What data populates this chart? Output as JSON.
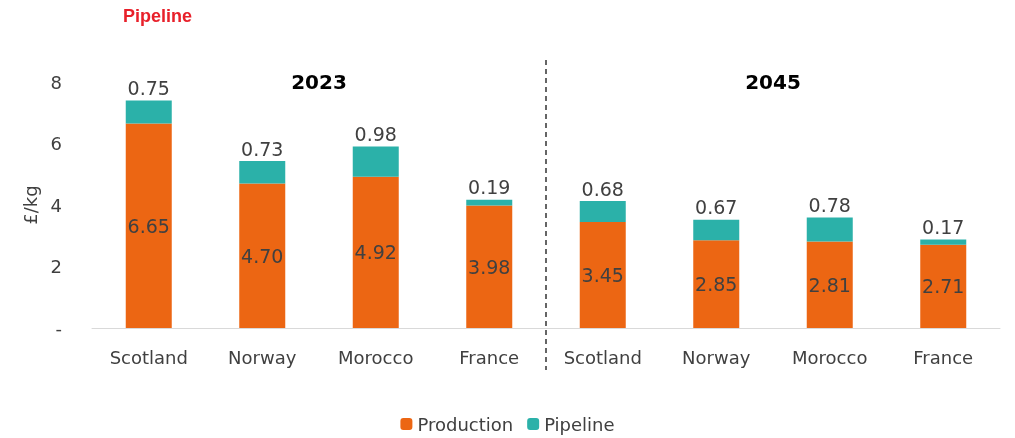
{
  "chart_data": {
    "type": "bar",
    "title": "Pipeline",
    "ylabel": "£/kg",
    "stacked": true,
    "legend": "bottom",
    "grid": false,
    "categories": [
      "Scotland",
      "Norway",
      "Morocco",
      "France",
      "Scotland",
      "Norway",
      "Morocco",
      "France"
    ],
    "series": [
      {
        "name": "Production",
        "color": "#ec6613",
        "values": [
          6.65,
          4.7,
          4.92,
          3.98,
          3.45,
          2.85,
          2.81,
          2.71
        ],
        "value_labels": [
          "6.65",
          "4.70",
          "4.92",
          "3.98",
          "3.45",
          "2.85",
          "2.81",
          "2.71"
        ]
      },
      {
        "name": "Pipeline",
        "color": "#2bb1a9",
        "values": [
          0.75,
          0.73,
          0.98,
          0.19,
          0.68,
          0.67,
          0.78,
          0.17
        ],
        "value_labels": [
          "0.75",
          "0.73",
          "0.98",
          "0.19",
          "0.68",
          "0.67",
          "0.78",
          "0.17"
        ]
      }
    ],
    "ylim": [
      0,
      8
    ],
    "yticks": [
      {
        "value": 0,
        "label": "-"
      },
      2,
      4,
      6,
      8
    ],
    "annotations": [
      "2023",
      "2045"
    ]
  }
}
